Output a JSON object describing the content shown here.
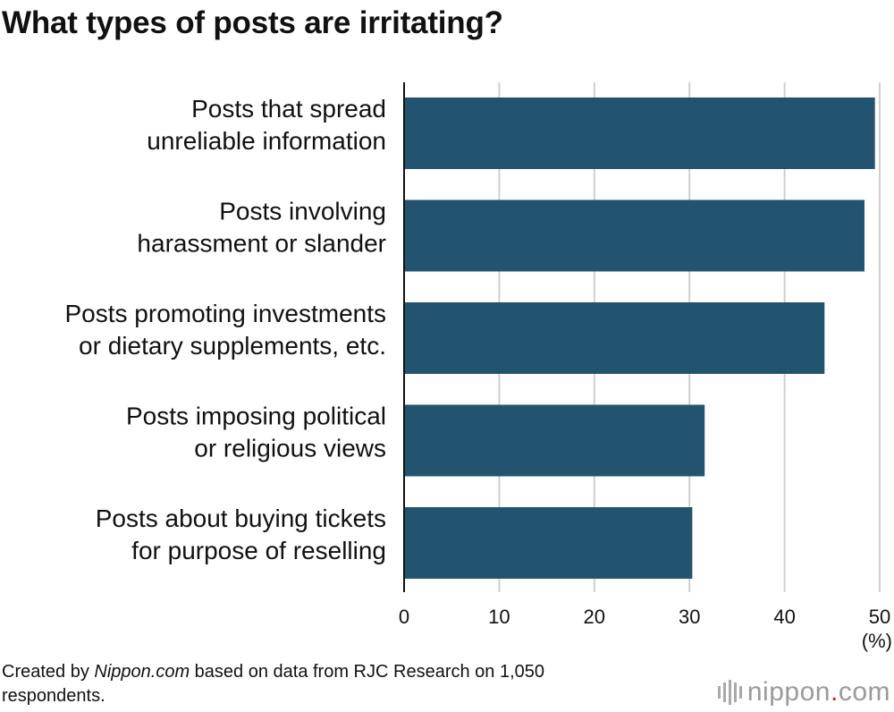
{
  "title": "What types of posts are irritating?",
  "chart_data": {
    "type": "bar",
    "orientation": "horizontal",
    "title": "What types of posts are irritating?",
    "categories": [
      [
        "Posts that spread",
        "unreliable information"
      ],
      [
        "Posts involving",
        "harassment or slander"
      ],
      [
        "Posts promoting investments",
        "or dietary supplements, etc."
      ],
      [
        "Posts imposing political",
        "or religious views"
      ],
      [
        "Posts about buying tickets",
        "for purpose of reselling"
      ]
    ],
    "values": [
      49.5,
      48.4,
      44.2,
      31.6,
      30.3
    ],
    "xlim": [
      0,
      50
    ],
    "xticks": [
      "0",
      "10",
      "20",
      "30",
      "40",
      "50"
    ],
    "unit": "(%)",
    "grid": true,
    "bar_color": "#23546f",
    "grid_color": "#cfcfcf"
  },
  "footer": {
    "prefix": "Created by ",
    "brand": "Nippon.com",
    "suffix": " based on data from RJC Research on 1,050 respondents."
  },
  "logo": {
    "name": "nippon",
    "dot": ".",
    "tld": "com"
  }
}
